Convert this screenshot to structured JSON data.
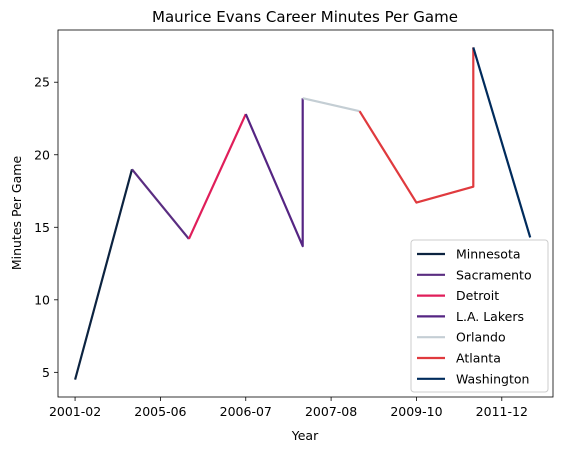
{
  "chart_data": {
    "type": "line",
    "title": "Maurice Evans  Career Minutes Per Game",
    "xlabel": "Year",
    "ylabel": "Minutes Per Game",
    "x_tick_labels": [
      "2001-02",
      "2005-06",
      "2006-07",
      "2007-08",
      "2009-10",
      "2011-12"
    ],
    "y_ticks": [
      5,
      10,
      15,
      20,
      25
    ],
    "ylim": [
      3.3,
      28.6
    ],
    "xlim": [
      -0.3,
      8.4
    ],
    "grid": false,
    "legend_position": "lower right",
    "series": [
      {
        "name": "Minnesota",
        "color": "#0c2340",
        "points": [
          [
            0,
            4.5
          ],
          [
            1,
            19.0
          ]
        ]
      },
      {
        "name": "Sacramento",
        "color": "#5a2d81",
        "points": [
          [
            1,
            19.0
          ],
          [
            2,
            14.2
          ]
        ]
      },
      {
        "name": "Detroit",
        "color": "#e01e5a",
        "points": [
          [
            2,
            14.2
          ],
          [
            3,
            22.8
          ]
        ]
      },
      {
        "name": "L.A. Lakers",
        "color": "#552583",
        "points": [
          [
            3,
            22.8
          ],
          [
            4,
            13.7
          ],
          [
            4,
            23.9
          ]
        ]
      },
      {
        "name": "Orlando",
        "color": "#c4ced4",
        "points": [
          [
            4,
            23.9
          ],
          [
            5,
            23.0
          ]
        ]
      },
      {
        "name": "Atlanta",
        "color": "#e03a3e",
        "points": [
          [
            5,
            23.0
          ],
          [
            6,
            16.7
          ],
          [
            7,
            17.8
          ],
          [
            7,
            27.4
          ]
        ]
      },
      {
        "name": "Washington",
        "color": "#002b5c",
        "points": [
          [
            7,
            27.4
          ],
          [
            8,
            14.3
          ]
        ]
      }
    ],
    "x_tick_positions": [
      0,
      1.5,
      3,
      4.5,
      6,
      7.5
    ]
  }
}
